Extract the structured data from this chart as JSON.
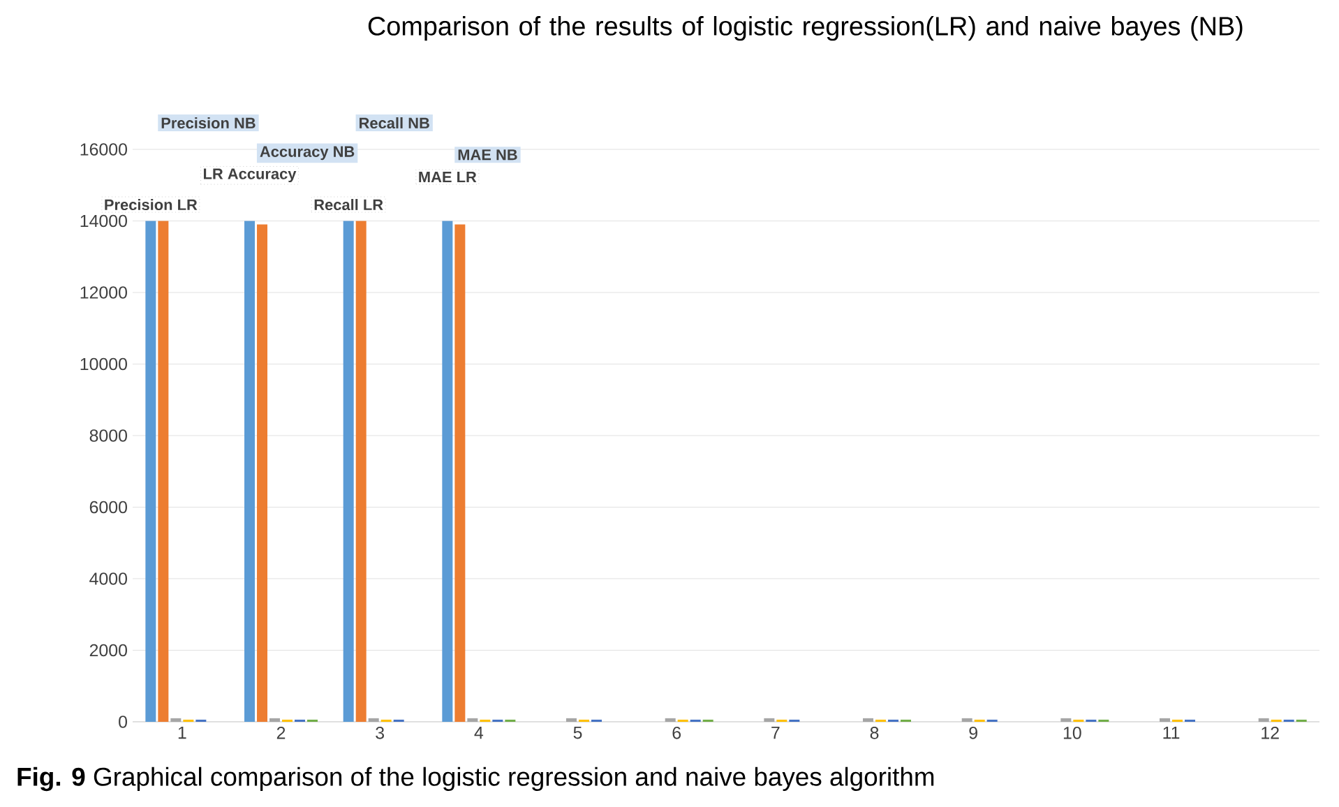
{
  "chart_data": {
    "type": "bar",
    "title": "Comparison of the results of logistic regression(LR) and naive bayes (NB)",
    "categories": [
      "1",
      "2",
      "3",
      "4",
      "5",
      "6",
      "7",
      "8",
      "9",
      "10",
      "11",
      "12"
    ],
    "series": [
      {
        "color": "#5b9bd5",
        "values": [
          14000,
          14000,
          14000,
          14000,
          null,
          null,
          null,
          null,
          null,
          null,
          null,
          null
        ]
      },
      {
        "color": "#ed7d31",
        "values": [
          14000,
          13900,
          14000,
          13900,
          null,
          null,
          null,
          null,
          null,
          null,
          null,
          null
        ]
      },
      {
        "color": "#a5a5a5",
        "values": [
          100,
          100,
          100,
          100,
          100,
          100,
          100,
          100,
          100,
          100,
          100,
          100
        ]
      },
      {
        "color": "#ffc000",
        "values": [
          60,
          60,
          60,
          60,
          60,
          60,
          60,
          60,
          60,
          60,
          60,
          60
        ]
      },
      {
        "color": "#4472c4",
        "values": [
          60,
          60,
          60,
          60,
          60,
          60,
          60,
          60,
          60,
          60,
          60,
          60
        ]
      },
      {
        "color": "#70ad47",
        "values": [
          null,
          60,
          null,
          60,
          null,
          60,
          null,
          60,
          null,
          60,
          null,
          60
        ]
      }
    ],
    "ylim": [
      0,
      16000
    ],
    "yticks": [
      0,
      2000,
      4000,
      6000,
      8000,
      10000,
      12000,
      14000,
      16000
    ],
    "grid": "y",
    "annotations": [
      "Precision LR",
      "Precision NB",
      "LR Accuracy",
      "Accuracy NB",
      "Recall LR",
      "Recall NB",
      "MAE LR",
      "MAE NB",
      "**Fig. 9**  Graphical comparison of the logistic regression and naive bayes algorithm"
    ]
  }
}
